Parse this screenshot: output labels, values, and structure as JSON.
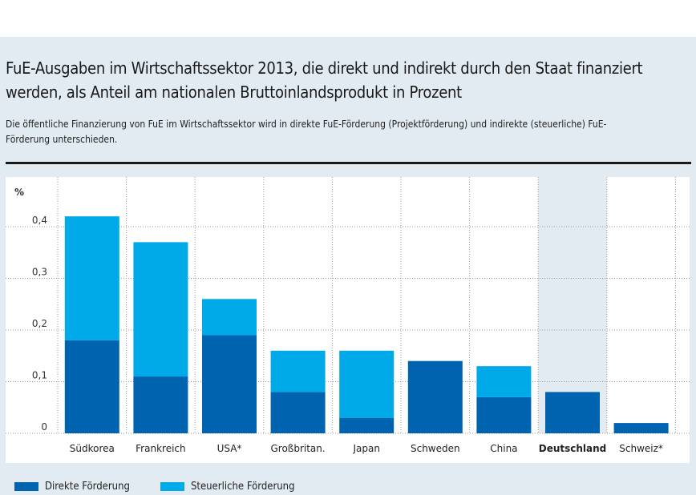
{
  "title": "FuE-Ausgaben im Wirtschaftssektor 2013, die direkt und indirekt durch den Staat finanziert werden, als Anteil am nationalen Bruttoinlandsprodukt in Prozent",
  "subtitle": "Die öffentliche Finanzierung von FuE im Wirtschaftssektor wird in direkte FuE-Förderung (Projektförderung) und indirekte (steuerliche) FuE-Förderung unterschieden.",
  "colors": {
    "direct": "#0063b0",
    "tax": "#00a9e8",
    "highlight": "#e2ebf1"
  },
  "chart_data": {
    "type": "bar",
    "stacked": true,
    "ylabel": "%",
    "ylim": [
      0,
      0.45
    ],
    "yticks": [
      0,
      0.1,
      0.2,
      0.3,
      0.4
    ],
    "ytick_labels": [
      "0",
      "0,1",
      "0,2",
      "0,3",
      "0,4"
    ],
    "categories": [
      "Südkorea",
      "Frankreich",
      "USA*",
      "Großbritan.",
      "Japan",
      "Schweden",
      "China",
      "Deutschland",
      "Schweiz*"
    ],
    "highlight_category": "Deutschland",
    "series": [
      {
        "name": "Direkte Förderung",
        "values": [
          0.18,
          0.11,
          0.19,
          0.08,
          0.03,
          0.14,
          0.07,
          0.08,
          0.02
        ]
      },
      {
        "name": "Steuerliche Förderung",
        "values": [
          0.24,
          0.26,
          0.07,
          0.08,
          0.13,
          0,
          0.06,
          0,
          0
        ]
      }
    ],
    "grid": true,
    "legend_position": "bottom-left"
  }
}
